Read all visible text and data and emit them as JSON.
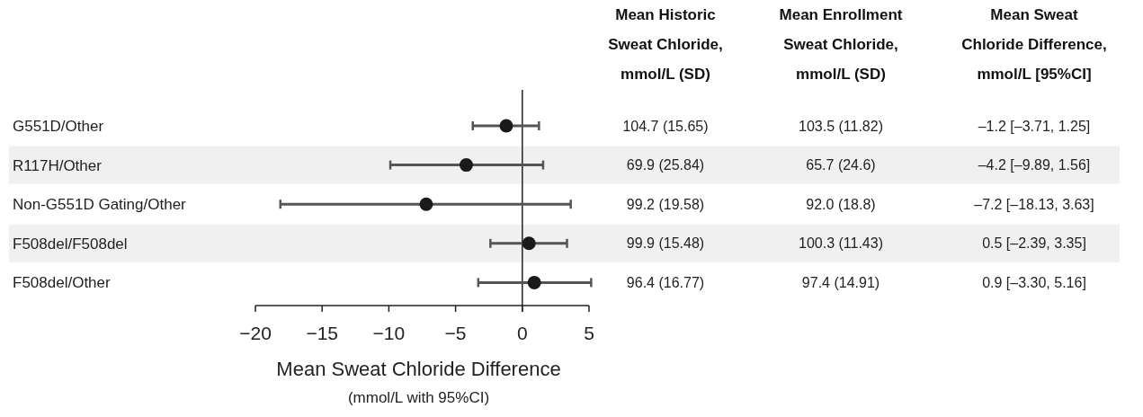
{
  "chart_data": {
    "type": "scatter",
    "orientation": "horizontal",
    "categories": [
      "G551D/Other",
      "R117H/Other",
      "Non-G551D Gating/Other",
      "F508del/F508del",
      "F508del/Other"
    ],
    "xlabel": "Mean Sweat Chloride Difference\n(mmol/L with 95%CI)",
    "xlim": [
      -20,
      5
    ],
    "xticks": [
      {
        "value": -20,
        "label": "−20"
      },
      {
        "value": -15,
        "label": "−15"
      },
      {
        "value": -10,
        "label": "−10"
      },
      {
        "value": -5,
        "label": "−5"
      },
      0,
      5
    ],
    "ref_lines": [
      {
        "axis": "x",
        "value": 0,
        "color": "#222222"
      }
    ],
    "marker": "circle",
    "annotations": [
      "Mean Historic\nSweat Chloride,\nmmol/L (SD)",
      "Mean Enrollment\nSweat Chloride,\nmmol/L (SD)",
      "104.7 (15.65)",
      "103.5 (11.82)",
      "69.9 (25.84)",
      "65.7 (24.6)",
      "99.2 (19.58)",
      "92.0 (18.8)",
      "99.9 (15.48)",
      "100.3 (11.43)",
      "96.4 (16.77)",
      "97.4 (14.91)"
    ],
    "series": [
      {
        "name": "Mean Sweat\nChloride Difference,\nmmol/L [95%CI]",
        "color": "#1a1a1a",
        "values": [
          -1.2,
          -4.2,
          -7.2,
          0.5,
          0.9
        ],
        "errors": [
          [
            -3.71,
            1.25
          ],
          [
            -9.89,
            1.56
          ],
          [
            -18.13,
            3.63
          ],
          [
            -2.39,
            3.35
          ],
          [
            -3.3,
            5.16
          ]
        ],
        "value_labels": [
          "–1.2 [–3.71, 1.25]",
          "–4.2 [–9.89, 1.56]",
          "–7.2 [–18.13, 3.63]",
          "0.5 [–2.39, 3.35]",
          "0.9 [–3.30, 5.16]"
        ]
      }
    ]
  }
}
